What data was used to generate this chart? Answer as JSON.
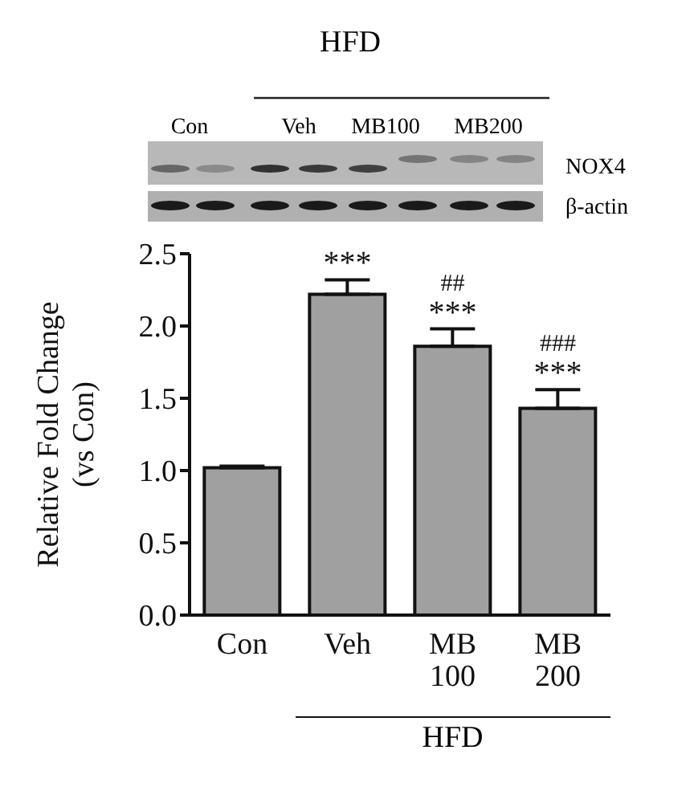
{
  "chart_data": {
    "type": "bar",
    "ylabel": "Relative Fold Change\n(vs Con)",
    "categories": [
      "Con",
      "Veh",
      "MB 100",
      "MB 200"
    ],
    "values": [
      1.02,
      2.22,
      1.86,
      1.43
    ],
    "errors": [
      0.01,
      0.1,
      0.12,
      0.13
    ],
    "color": "#a0a0a0",
    "ylim": [
      0,
      2.5
    ],
    "yticks": [
      {
        "value": 0,
        "label": "0.0"
      },
      {
        "value": 0.5,
        "label": "0.5"
      },
      {
        "value": 1,
        "label": "1.0"
      },
      {
        "value": 1.5,
        "label": "1.5"
      },
      {
        "value": 2,
        "label": "2.0"
      },
      {
        "value": 2.5,
        "label": "2.5"
      }
    ],
    "annotations": [
      "HFD",
      "Con",
      "Veh",
      "MB100",
      "MB200",
      "NOX4",
      "β-actin",
      "HFD",
      {
        "text": "***",
        "x": "Veh",
        "y": 2.32
      },
      {
        "text": "***",
        "x": "MB 100",
        "y": 1.98
      },
      {
        "text": "##",
        "x": "MB 100",
        "y": 1.98
      },
      {
        "text": "***",
        "x": "MB 200",
        "y": 1.56
      },
      {
        "text": "###",
        "x": "MB 200",
        "y": 1.56
      }
    ]
  }
}
